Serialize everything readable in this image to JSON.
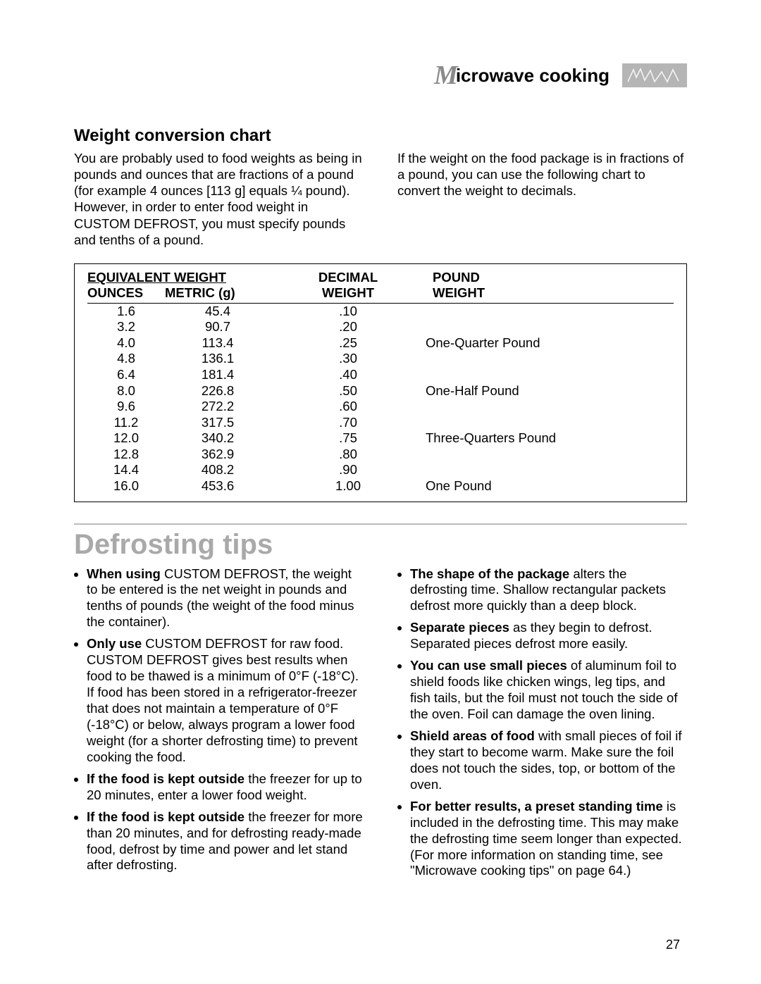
{
  "header": {
    "script_letter": "M",
    "title_rest": "icrowave cooking"
  },
  "weight_section": {
    "subtitle": "Weight conversion chart",
    "intro_left": "You are probably used to food weights as being in pounds and ounces that are fractions of a pound (for example 4 ounces [113 g] equals ¼ pound). However, in order to enter food weight in CUSTOM DEFROST, you must specify pounds and tenths of a pound.",
    "intro_right": "If the weight on the food package is in fractions of a pound, you can use the following chart to convert the weight to decimals.",
    "table": {
      "group_header": "EQUIVALENT WEIGHT",
      "col_ounces": "OUNCES",
      "col_metric": "METRIC (g)",
      "col_decimal_top": "DECIMAL",
      "col_decimal_bot": "WEIGHT",
      "col_pound_top": "POUND",
      "col_pound_bot": "WEIGHT",
      "rows": [
        {
          "oz": "1.6",
          "g": "45.4",
          "dec": ".10",
          "lb": ""
        },
        {
          "oz": "3.2",
          "g": "90.7",
          "dec": ".20",
          "lb": ""
        },
        {
          "oz": "4.0",
          "g": "113.4",
          "dec": ".25",
          "lb": "One-Quarter Pound"
        },
        {
          "oz": "4.8",
          "g": "136.1",
          "dec": ".30",
          "lb": ""
        },
        {
          "oz": "6.4",
          "g": "181.4",
          "dec": ".40",
          "lb": ""
        },
        {
          "oz": "8.0",
          "g": "226.8",
          "dec": ".50",
          "lb": "One-Half Pound"
        },
        {
          "oz": "9.6",
          "g": "272.2",
          "dec": ".60",
          "lb": ""
        },
        {
          "oz": "11.2",
          "g": "317.5",
          "dec": ".70",
          "lb": ""
        },
        {
          "oz": "12.0",
          "g": "340.2",
          "dec": ".75",
          "lb": "Three-Quarters Pound"
        },
        {
          "oz": "12.8",
          "g": "362.9",
          "dec": ".80",
          "lb": ""
        },
        {
          "oz": "14.4",
          "g": "408.2",
          "dec": ".90",
          "lb": ""
        },
        {
          "oz": "16.0",
          "g": "453.6",
          "dec": "1.00",
          "lb": "One Pound"
        }
      ]
    }
  },
  "defrost_section": {
    "title": "Defrosting tips",
    "left_tips": [
      {
        "b": "When using",
        "t": " CUSTOM DEFROST, the weight to be entered is the net weight in pounds and tenths of pounds (the weight of the food minus the container)."
      },
      {
        "b": "Only use",
        "t": " CUSTOM DEFROST for raw food. CUSTOM DEFROST gives best results when food to be thawed is a minimum of 0°F (-18°C). If food has been stored in a refrigerator-freezer that does not maintain a temperature of 0°F (-18°C) or below, always program a lower food weight (for a shorter defrosting time) to prevent cooking the food."
      },
      {
        "b": "If the food is kept outside",
        "t": " the freezer for up to 20 minutes, enter a lower food weight."
      },
      {
        "b": "If the food is kept outside",
        "t": " the freezer for more than 20 minutes, and for defrosting ready-made food, defrost by time and power and let stand after defrosting."
      }
    ],
    "right_tips": [
      {
        "b": "The shape of the package",
        "t": " alters the defrosting time. Shallow rectangular packets defrost more quickly than a deep block."
      },
      {
        "b": "Separate pieces",
        "t": " as they begin to defrost. Separated pieces defrost more easily."
      },
      {
        "b": "You can use small pieces",
        "t": " of aluminum foil to shield foods like chicken wings, leg tips, and fish tails, but the foil must not touch the side of the oven. Foil can damage the oven lining."
      },
      {
        "b": "Shield areas of food",
        "t": " with small pieces of foil if they start to become warm. Make sure the foil does not touch the sides, top, or bottom of the oven."
      },
      {
        "b": "For better results, a preset standing time",
        "t": " is included in the defrosting time. This may make the defrosting time seem longer than expected. (For more information on standing time, see \"Microwave cooking tips\" on page 64.)"
      }
    ]
  },
  "page_number": "27",
  "colors": {
    "gray_title": "#a9a9a9",
    "gray_rule": "#bcbcbc",
    "badge_bg": "#b5b5b5"
  }
}
